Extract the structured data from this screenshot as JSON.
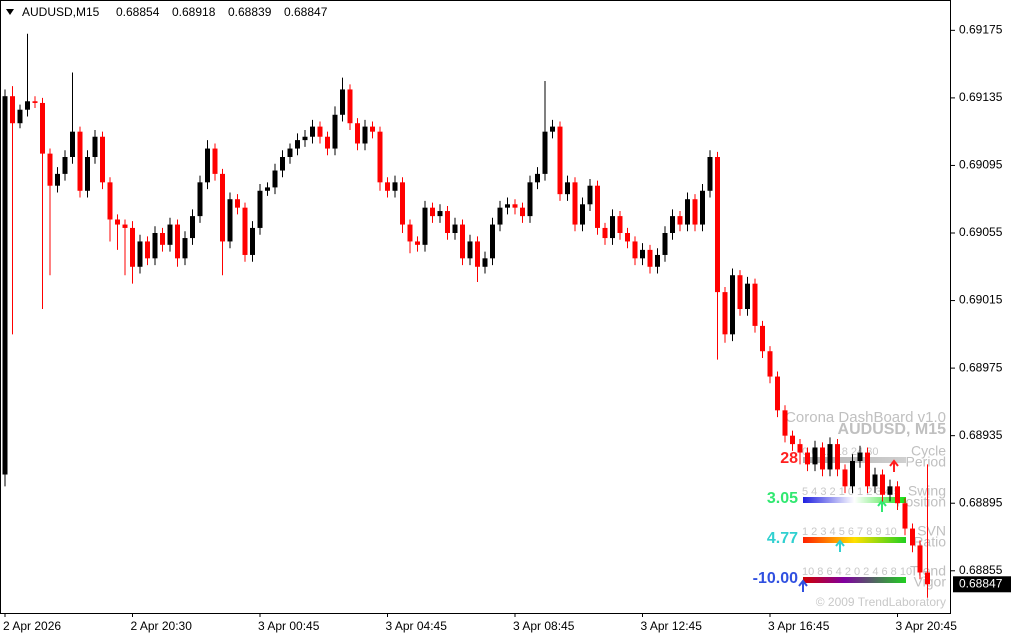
{
  "chart_data": {
    "type": "candlestick",
    "symbol": "AUDUSD,M15",
    "up_color": "#000000",
    "down_color": "#ff0000",
    "ylim": [
      0.6883,
      0.6919
    ],
    "yticks": [
      0.68855,
      0.68895,
      0.68935,
      0.68975,
      0.69015,
      0.69055,
      0.69095,
      0.69135,
      0.69175
    ],
    "categories": [
      "2 Apr 2026",
      null,
      null,
      null,
      null,
      null,
      null,
      null,
      null,
      null,
      null,
      null,
      null,
      null,
      null,
      null,
      null,
      "2 Apr 20:30",
      null,
      null,
      null,
      null,
      null,
      null,
      null,
      null,
      null,
      null,
      null,
      null,
      null,
      null,
      null,
      null,
      "3 Apr 00:45",
      null,
      null,
      null,
      null,
      null,
      null,
      null,
      null,
      null,
      null,
      null,
      null,
      null,
      null,
      null,
      null,
      "3 Apr 04:45",
      null,
      null,
      null,
      null,
      null,
      null,
      null,
      null,
      null,
      null,
      null,
      null,
      null,
      null,
      null,
      null,
      "3 Apr 08:45",
      null,
      null,
      null,
      null,
      null,
      null,
      null,
      null,
      null,
      null,
      null,
      null,
      null,
      null,
      null,
      null,
      "3 Apr 12:45",
      null,
      null,
      null,
      null,
      null,
      null,
      null,
      null,
      null,
      null,
      null,
      null,
      null,
      null,
      null,
      null,
      "3 Apr 16:45",
      null,
      null,
      null,
      null,
      null,
      null,
      null,
      null,
      null,
      null,
      null,
      null,
      null,
      null,
      null,
      null,
      "3 Apr 20:45",
      null,
      null,
      null,
      null
    ],
    "open": [
      0.68912,
      0.69136,
      0.6912,
      0.69128,
      0.69133,
      0.69132,
      0.69102,
      0.69083,
      0.6909,
      0.691,
      0.69115,
      0.6908,
      0.691,
      0.69112,
      0.69085,
      0.69063,
      0.6906,
      0.69058,
      0.69035,
      0.6905,
      0.6904,
      0.69055,
      0.69048,
      0.6906,
      0.6904,
      0.69052,
      0.69065,
      0.69085,
      0.69105,
      0.6909,
      0.6905,
      0.69075,
      0.6907,
      0.69042,
      0.69058,
      0.6908,
      0.69082,
      0.69092,
      0.691,
      0.69105,
      0.6911,
      0.69112,
      0.69118,
      0.69112,
      0.69105,
      0.69125,
      0.6914,
      0.6912,
      0.69108,
      0.69118,
      0.69115,
      0.69085,
      0.6908,
      0.69085,
      0.6906,
      0.6905,
      0.69048,
      0.6907,
      0.69065,
      0.69068,
      0.69055,
      0.6906,
      0.6904,
      0.6905,
      0.69035,
      0.6904,
      0.6906,
      0.6907,
      0.69072,
      0.6907,
      0.69065,
      0.69085,
      0.6909,
      0.69115,
      0.69118,
      0.69078,
      0.69085,
      0.6906,
      0.69072,
      0.69083,
      0.69058,
      0.69052,
      0.69065,
      0.69055,
      0.6905,
      0.6904,
      0.69045,
      0.69035,
      0.69042,
      0.69055,
      0.69065,
      0.6906,
      0.69075,
      0.6906,
      0.6908,
      0.691,
      0.6902,
      0.68995,
      0.6903,
      0.6901,
      0.69025,
      0.69,
      0.68985,
      0.6897,
      0.6895,
      0.68935,
      0.6893,
      0.68925,
      0.68918,
      0.68928,
      0.68915,
      0.6893,
      0.68915,
      0.68905,
      0.6892,
      0.68925,
      0.68905,
      0.68912,
      0.689,
      0.68905,
      0.68895,
      0.6888,
      0.6887,
      0.68854
    ],
    "high": [
      0.6914,
      0.69142,
      0.69131,
      0.69173,
      0.69136,
      0.69135,
      0.69105,
      0.69094,
      0.69104,
      0.6915,
      0.69118,
      0.69104,
      0.69116,
      0.69115,
      0.69088,
      0.69066,
      0.69063,
      0.69062,
      0.69054,
      0.69053,
      0.69059,
      0.69058,
      0.69064,
      0.69063,
      0.69056,
      0.69069,
      0.69089,
      0.6911,
      0.69108,
      0.69093,
      0.69079,
      0.69078,
      0.69073,
      0.69062,
      0.69084,
      0.69085,
      0.69096,
      0.69104,
      0.69108,
      0.69114,
      0.69116,
      0.69122,
      0.69121,
      0.69115,
      0.6913,
      0.69147,
      0.69143,
      0.69123,
      0.69122,
      0.69121,
      0.69118,
      0.69088,
      0.69089,
      0.69088,
      0.69063,
      0.69053,
      0.69074,
      0.69073,
      0.69072,
      0.69071,
      0.69064,
      0.69063,
      0.69054,
      0.69053,
      0.69044,
      0.69064,
      0.69074,
      0.69076,
      0.69075,
      0.69073,
      0.69089,
      0.69094,
      0.69145,
      0.69122,
      0.69121,
      0.69089,
      0.69088,
      0.69076,
      0.69087,
      0.69086,
      0.69061,
      0.69069,
      0.69068,
      0.69058,
      0.69053,
      0.69049,
      0.69048,
      0.69046,
      0.69059,
      0.69069,
      0.69068,
      0.69079,
      0.69078,
      0.69084,
      0.69104,
      0.69103,
      0.69023,
      0.69034,
      0.69033,
      0.69029,
      0.69028,
      0.69003,
      0.68988,
      0.68973,
      0.68953,
      0.68938,
      0.68933,
      0.68928,
      0.68932,
      0.68931,
      0.68934,
      0.68933,
      0.68918,
      0.68924,
      0.68929,
      0.68928,
      0.68916,
      0.68915,
      0.68909,
      0.68908,
      0.68898,
      0.68883,
      0.68873,
      0.68918
    ],
    "low": [
      0.68905,
      0.68995,
      0.69117,
      0.69124,
      0.69129,
      0.6901,
      0.6903,
      0.69079,
      0.69086,
      0.69096,
      0.69076,
      0.69076,
      0.69096,
      0.69081,
      0.6905,
      0.69045,
      0.6903,
      0.69025,
      0.69031,
      0.69036,
      0.69036,
      0.69044,
      0.69044,
      0.69035,
      0.69036,
      0.69048,
      0.69061,
      0.69081,
      0.69086,
      0.6903,
      0.69046,
      0.69066,
      0.69038,
      0.69038,
      0.69054,
      0.69077,
      0.69078,
      0.69088,
      0.69096,
      0.69101,
      0.69106,
      0.69108,
      0.69108,
      0.69101,
      0.69101,
      0.69121,
      0.69116,
      0.69104,
      0.69104,
      0.69111,
      0.6908,
      0.69076,
      0.69076,
      0.69055,
      0.69043,
      0.69044,
      0.69044,
      0.69061,
      0.69061,
      0.69051,
      0.69051,
      0.69036,
      0.69036,
      0.69026,
      0.69031,
      0.69036,
      0.69056,
      0.69066,
      0.69066,
      0.69061,
      0.69061,
      0.69081,
      0.69086,
      0.69111,
      0.69074,
      0.69074,
      0.69056,
      0.69056,
      0.69068,
      0.69054,
      0.69048,
      0.69048,
      0.69051,
      0.69046,
      0.69036,
      0.69036,
      0.69031,
      0.69031,
      0.69038,
      0.69051,
      0.69056,
      0.69056,
      0.69056,
      0.69056,
      0.69076,
      0.6898,
      0.6899,
      0.68991,
      0.69006,
      0.69006,
      0.68996,
      0.68981,
      0.68966,
      0.68946,
      0.68931,
      0.68926,
      0.68918,
      0.68914,
      0.68914,
      0.68911,
      0.68911,
      0.68911,
      0.68901,
      0.68901,
      0.68916,
      0.68901,
      0.68901,
      0.68896,
      0.68896,
      0.68891,
      0.68876,
      0.68866,
      0.6885,
      0.68839
    ],
    "close": [
      0.69136,
      0.6912,
      0.69128,
      0.69133,
      0.69132,
      0.69102,
      0.69083,
      0.6909,
      0.691,
      0.69115,
      0.6908,
      0.691,
      0.69112,
      0.69085,
      0.69063,
      0.6906,
      0.69058,
      0.69035,
      0.6905,
      0.6904,
      0.69055,
      0.69048,
      0.6906,
      0.6904,
      0.69052,
      0.69065,
      0.69085,
      0.69105,
      0.6909,
      0.6905,
      0.69075,
      0.6907,
      0.69042,
      0.69058,
      0.6908,
      0.69082,
      0.69092,
      0.691,
      0.69105,
      0.6911,
      0.69112,
      0.69118,
      0.69112,
      0.69105,
      0.69125,
      0.6914,
      0.6912,
      0.69108,
      0.69118,
      0.69115,
      0.69085,
      0.6908,
      0.69085,
      0.6906,
      0.6905,
      0.69048,
      0.6907,
      0.69065,
      0.69068,
      0.69055,
      0.6906,
      0.6904,
      0.6905,
      0.69035,
      0.6904,
      0.6906,
      0.6907,
      0.69072,
      0.6907,
      0.69065,
      0.69085,
      0.6909,
      0.69115,
      0.69118,
      0.69078,
      0.69085,
      0.6906,
      0.69072,
      0.69083,
      0.69058,
      0.69052,
      0.69065,
      0.69055,
      0.6905,
      0.6904,
      0.69045,
      0.69035,
      0.69042,
      0.69055,
      0.69065,
      0.6906,
      0.69075,
      0.6906,
      0.6908,
      0.691,
      0.6902,
      0.68995,
      0.6903,
      0.6901,
      0.69025,
      0.69,
      0.68985,
      0.6897,
      0.6895,
      0.68935,
      0.6893,
      0.68925,
      0.68918,
      0.68928,
      0.68915,
      0.6893,
      0.68915,
      0.68905,
      0.6892,
      0.68925,
      0.68905,
      0.68912,
      0.689,
      0.68905,
      0.68895,
      0.6888,
      0.6887,
      0.68854,
      0.68847
    ]
  },
  "dashboard": {
    "title": "Corona DashBoard v1.0",
    "symbol": "AUDUSD, M15",
    "rows": [
      {
        "scale": "0  6  12 18 24 30",
        "name1": "Cycle",
        "name2": "Period",
        "value": "28",
        "color": "#ff2020"
      },
      {
        "scale": "5 4 3 2 1 0 1 2 3 4 5",
        "name1": "Swing",
        "name2": "Position",
        "value": "3.05",
        "color": "#30e870"
      },
      {
        "scale": "1 2 3 4 5 6 7 8 9 10",
        "name1": "SVN",
        "name2": "Ratio",
        "value": "4.77",
        "color": "#30d0d0"
      },
      {
        "scale": "10 8 6 4 2 0 2 4 6 8 10",
        "name1": "Trend",
        "name2": "Vigor",
        "value": "-10.00",
        "color": "#3050e0"
      }
    ],
    "footer": "© 2009 TrendLaboratory"
  }
}
